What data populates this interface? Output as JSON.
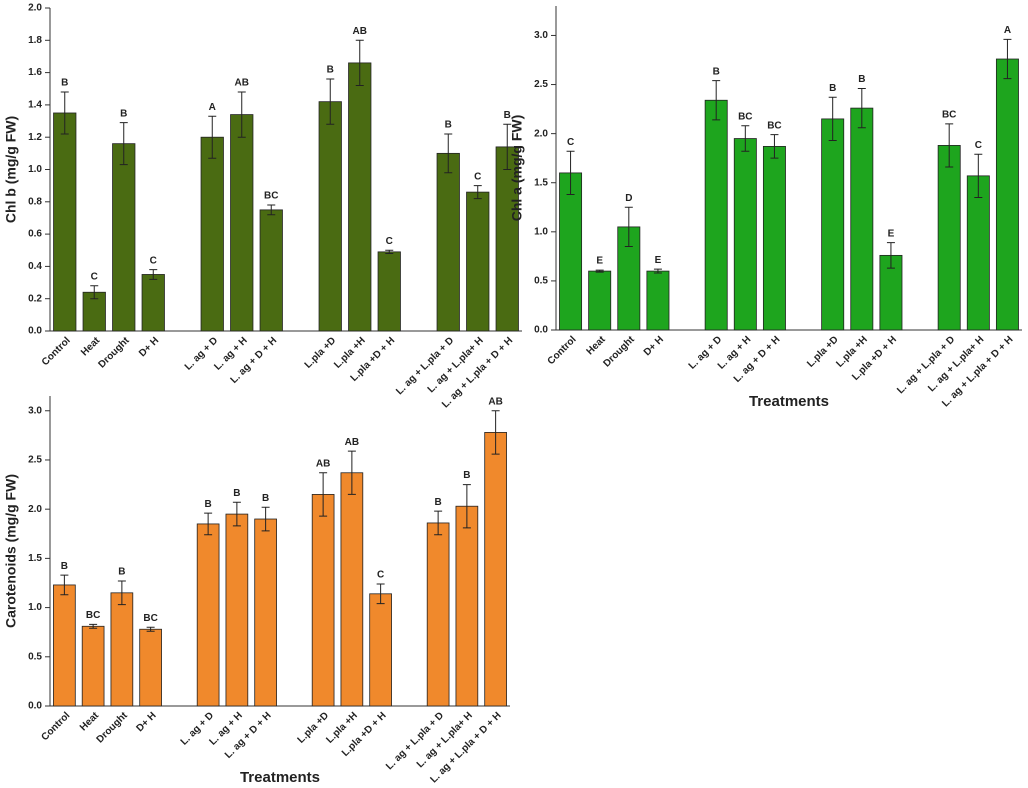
{
  "chart_data": [
    {
      "type": "bar",
      "y_label": "Chl b (mg/g FW)",
      "color": "#4a6b12",
      "categories": [
        "Control",
        "Heat",
        "Drought",
        "D+ H",
        null,
        "L. ag + D",
        "L. ag + H",
        "L. ag + D + H",
        null,
        "L.pla +D",
        "L.pla +H",
        "L.pla +D + H",
        null,
        "L. ag + L.pla + D",
        "L. ag + L.pla+ H",
        "L. ag + L.pla + D + H"
      ],
      "values": [
        1.35,
        0.24,
        1.16,
        0.35,
        null,
        1.2,
        1.34,
        0.75,
        null,
        1.42,
        1.66,
        0.49,
        null,
        1.1,
        0.86,
        1.14
      ],
      "errors": [
        0.13,
        0.04,
        0.13,
        0.03,
        null,
        0.13,
        0.14,
        0.03,
        null,
        0.14,
        0.14,
        0.01,
        null,
        0.12,
        0.04,
        0.14
      ],
      "letters": [
        "B",
        "C",
        "B",
        "C",
        null,
        "A",
        "AB",
        "BC",
        null,
        "B",
        "AB",
        "C",
        null,
        "B",
        "C",
        "B"
      ],
      "ylim": [
        0,
        2.0
      ],
      "yticks": [
        {
          "value": 0,
          "label": "0.0"
        },
        0.2,
        0.4,
        0.6,
        0.8,
        {
          "value": 1,
          "label": "1.0"
        },
        1.2,
        1.4,
        1.6,
        1.8,
        {
          "value": 2,
          "label": "2.0"
        }
      ]
    },
    {
      "type": "bar",
      "y_label": "Chl a (mg/g FW)",
      "x_label": "Treatments",
      "color": "#1ea51e",
      "categories": [
        "Control",
        "Heat",
        "Drought",
        "D+ H",
        null,
        "L. ag + D",
        "L. ag + H",
        "L. ag + D + H",
        null,
        "L.pla +D",
        "L.pla +H",
        "L.pla +D + H",
        null,
        "L. ag + L.pla + D",
        "L. ag + L.pla+ H",
        "L. ag + L.pla + D + H"
      ],
      "values": [
        1.6,
        0.6,
        1.05,
        0.6,
        null,
        2.34,
        1.95,
        1.87,
        null,
        2.15,
        2.26,
        0.76,
        null,
        1.88,
        1.57,
        2.76
      ],
      "errors": [
        0.22,
        0.01,
        0.2,
        0.02,
        null,
        0.2,
        0.13,
        0.12,
        null,
        0.22,
        0.2,
        0.13,
        null,
        0.22,
        0.22,
        0.2
      ],
      "letters": [
        "C",
        "E",
        "D",
        "E",
        null,
        "B",
        "BC",
        "BC",
        null,
        "B",
        "B",
        "E",
        null,
        "BC",
        "C",
        "A"
      ],
      "ylim": [
        0,
        3.3
      ],
      "yticks": [
        {
          "value": 0,
          "label": "0.0"
        },
        0.5,
        {
          "value": 1,
          "label": "1.0"
        },
        1.5,
        {
          "value": 2,
          "label": "2.0"
        },
        2.5,
        {
          "value": 3,
          "label": "3.0"
        }
      ]
    },
    {
      "type": "bar",
      "y_label": "Carotenoids (mg/g FW)",
      "x_label": "Treatments",
      "color": "#f0892c",
      "categories": [
        "Control",
        "Heat",
        "Drought",
        "D+ H",
        null,
        "L. ag + D",
        "L. ag + H",
        "L. ag + D + H",
        null,
        "L.pla +D",
        "L.pla +H",
        "L.pla +D + H",
        null,
        "L. ag + L.pla + D",
        "L. ag + L.pla+ H",
        "L. ag + L.pla + D + H"
      ],
      "values": [
        1.23,
        0.81,
        1.15,
        0.78,
        null,
        1.85,
        1.95,
        1.9,
        null,
        2.15,
        2.37,
        1.14,
        null,
        1.86,
        2.03,
        2.78
      ],
      "errors": [
        0.1,
        0.02,
        0.12,
        0.02,
        null,
        0.11,
        0.12,
        0.12,
        null,
        0.22,
        0.22,
        0.1,
        null,
        0.12,
        0.22,
        0.22
      ],
      "letters": [
        "B",
        "BC",
        "B",
        "BC",
        null,
        "B",
        "B",
        "B",
        null,
        "AB",
        "AB",
        "C",
        null,
        "B",
        "B",
        "AB"
      ],
      "ylim": [
        0,
        3.15
      ],
      "yticks": [
        {
          "value": 0,
          "label": "0.0"
        },
        0.5,
        {
          "value": 1,
          "label": "1.0"
        },
        1.5,
        {
          "value": 2,
          "label": "2.0"
        },
        2.5,
        {
          "value": 3,
          "label": "3.0"
        }
      ]
    }
  ]
}
